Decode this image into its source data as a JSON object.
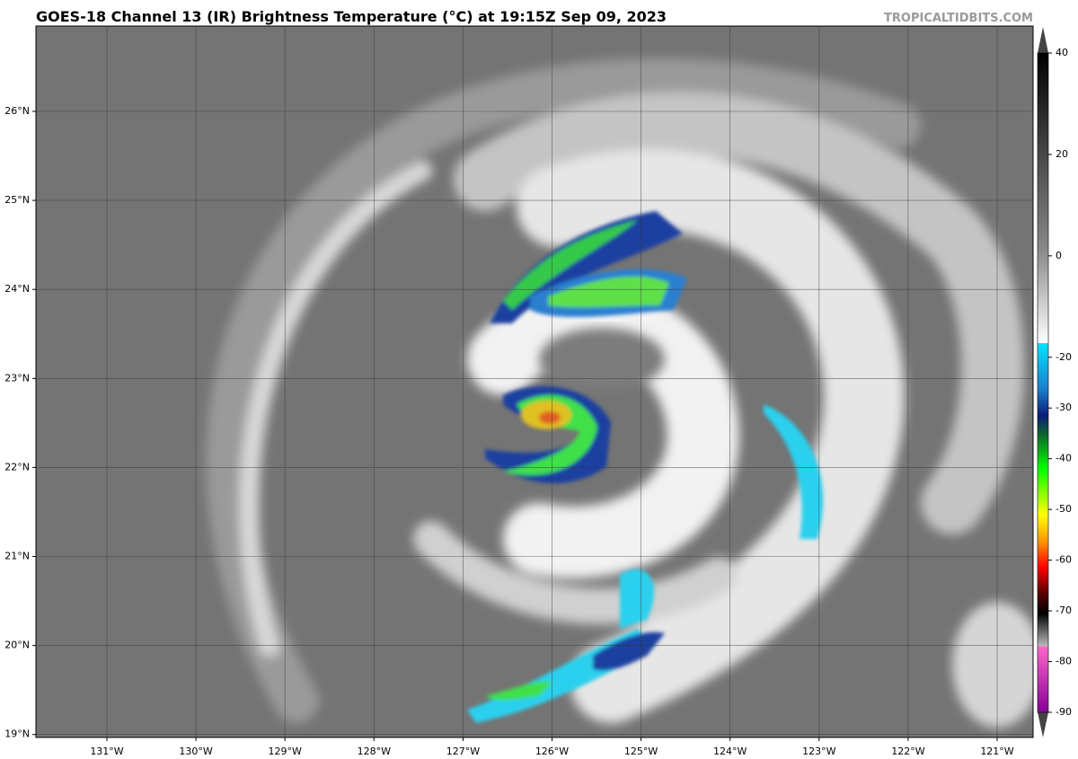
{
  "map": {
    "title": "GOES-18 Channel 13 (IR) Brightness Temperature (°C) at 19:15Z Sep 09, 2023",
    "credit": "TROPICALTIDBITS.COM",
    "lat_labels": [
      "26°N",
      "25°N",
      "24°N",
      "23°N",
      "22°N",
      "21°N",
      "20°N",
      "19°N"
    ],
    "lon_labels": [
      "131°W",
      "130°W",
      "129°W",
      "128°W",
      "127°W",
      "126°W",
      "125°W",
      "124°W",
      "123°W",
      "122°W",
      "121°W"
    ],
    "colorbar": {
      "lim": [
        -90,
        40
      ],
      "ticks": [
        40,
        20,
        0,
        -20,
        -30,
        -40,
        -50,
        -60,
        -70,
        -80,
        -90
      ]
    }
  }
}
